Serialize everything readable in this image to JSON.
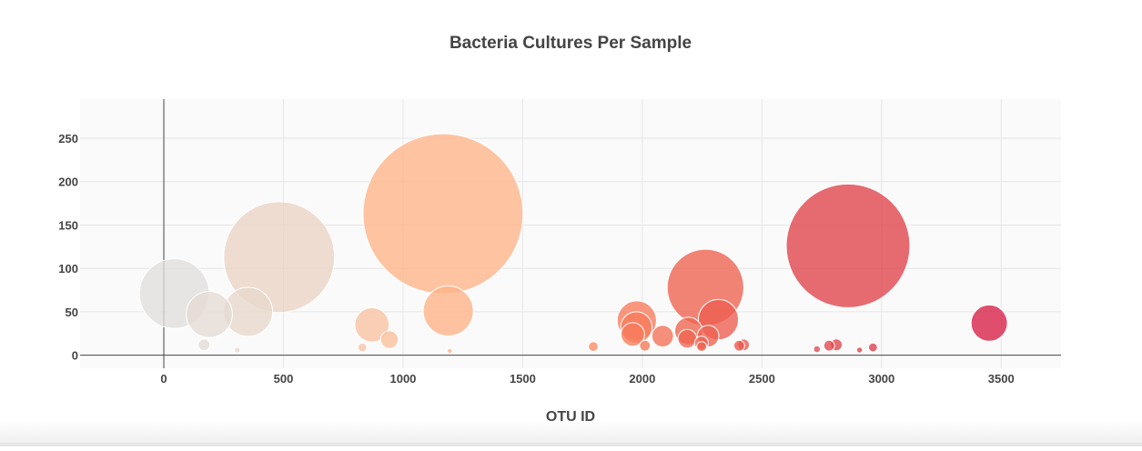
{
  "chart_data": {
    "type": "scatter",
    "subtype": "bubble",
    "title": "Bacteria Cultures Per Sample",
    "xlabel": "OTU ID",
    "ylabel": "",
    "xlim": [
      -350,
      3750
    ],
    "ylim": [
      -15,
      295
    ],
    "x_ticks": [
      0,
      500,
      1000,
      1500,
      2000,
      2500,
      3000,
      3500
    ],
    "x_tick_labels": [
      "0",
      "500",
      "1000",
      "1500",
      "2000",
      "2500",
      "3000",
      "3500"
    ],
    "y_ticks": [
      0,
      50,
      100,
      150,
      200,
      250
    ],
    "y_tick_labels": [
      "0",
      "50",
      "100",
      "150",
      "200",
      "250"
    ],
    "grid": true,
    "legend": "none",
    "colorscale": "light gray → peach → coral → crimson (by OTU ID)",
    "points": [
      {
        "x": 44,
        "y": 71,
        "size": 71
      },
      {
        "x": 190,
        "y": 47,
        "size": 47
      },
      {
        "x": 168,
        "y": 12,
        "size": 12
      },
      {
        "x": 352,
        "y": 50,
        "size": 50
      },
      {
        "x": 307,
        "y": 6,
        "size": 6
      },
      {
        "x": 482,
        "y": 113,
        "size": 113
      },
      {
        "x": 870,
        "y": 35,
        "size": 35
      },
      {
        "x": 943,
        "y": 18,
        "size": 18
      },
      {
        "x": 830,
        "y": 9,
        "size": 9
      },
      {
        "x": 1167,
        "y": 163,
        "size": 163
      },
      {
        "x": 1189,
        "y": 51,
        "size": 51
      },
      {
        "x": 1195,
        "y": 5,
        "size": 5
      },
      {
        "x": 1795,
        "y": 10,
        "size": 10
      },
      {
        "x": 1977,
        "y": 40,
        "size": 40
      },
      {
        "x": 1975,
        "y": 32,
        "size": 32
      },
      {
        "x": 1960,
        "y": 24,
        "size": 24
      },
      {
        "x": 2011,
        "y": 11,
        "size": 11
      },
      {
        "x": 2085,
        "y": 22,
        "size": 22
      },
      {
        "x": 2264,
        "y": 78,
        "size": 78
      },
      {
        "x": 2318,
        "y": 41,
        "size": 41
      },
      {
        "x": 2193,
        "y": 28,
        "size": 28
      },
      {
        "x": 2188,
        "y": 19,
        "size": 19
      },
      {
        "x": 2275,
        "y": 22,
        "size": 22
      },
      {
        "x": 2247,
        "y": 14,
        "size": 14
      },
      {
        "x": 2248,
        "y": 10,
        "size": 10
      },
      {
        "x": 2405,
        "y": 11,
        "size": 11
      },
      {
        "x": 2423,
        "y": 12,
        "size": 12
      },
      {
        "x": 2860,
        "y": 126,
        "size": 126
      },
      {
        "x": 2781,
        "y": 11,
        "size": 11
      },
      {
        "x": 2811,
        "y": 12,
        "size": 12
      },
      {
        "x": 2730,
        "y": 7,
        "size": 7
      },
      {
        "x": 2908,
        "y": 6,
        "size": 6
      },
      {
        "x": 2964,
        "y": 9,
        "size": 9
      },
      {
        "x": 3450,
        "y": 37,
        "size": 37
      }
    ]
  }
}
